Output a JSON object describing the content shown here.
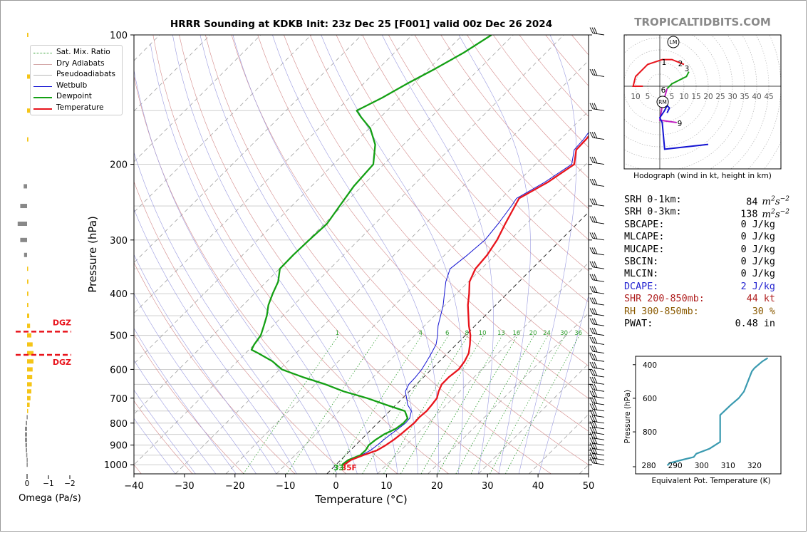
{
  "title": "HRRR Sounding at KDKB Init: 23z Dec 25 [F001] valid 00z Dec 26 2024",
  "brand": "TROPICALTIDBITS.COM",
  "colors": {
    "temperature": "#e8141c",
    "dewpoint": "#14a014",
    "wetbulb": "#1414d2",
    "dry_adiabat": "#d48a8a",
    "moist_adiabat": "#9a9ae0",
    "mixing_ratio": "#2e9e2e",
    "isotherm": "#999999",
    "dgz": "#e8141c",
    "omega_up": "#f5c518",
    "omega_down": "#888888",
    "theta_e": "#3a9ab0",
    "dcape": "#2424d0",
    "shr": "#b02020",
    "rh": "#8a5a00"
  },
  "legend": [
    {
      "label": "Sat. Mix. Ratio",
      "style": "dotted",
      "color": "#2e9e2e"
    },
    {
      "label": "Dry Adiabats",
      "style": "solid",
      "color": "#d4a8a8"
    },
    {
      "label": "Pseudoadiabats",
      "style": "solid",
      "color": "#b8b8b8"
    },
    {
      "label": "Wetbulb",
      "style": "solid",
      "color": "#1414d2"
    },
    {
      "label": "Dewpoint",
      "style": "thick",
      "color": "#14a014"
    },
    {
      "label": "Temperature",
      "style": "thick",
      "color": "#e8141c"
    }
  ],
  "chart_data": [
    {
      "type": "line",
      "name": "skew-t",
      "xlabel": "Temperature (°C)",
      "ylabel": "Pressure (hPa)",
      "xlim": [
        -40,
        50
      ],
      "ylim": [
        1050,
        100
      ],
      "x_ticks": [
        "−40",
        "−30",
        "−20",
        "−10",
        "0",
        "10",
        "20",
        "30",
        "40",
        "50"
      ],
      "y_ticks": [
        "100",
        "200",
        "300",
        "400",
        "500",
        "600",
        "700",
        "800",
        "900",
        "1000"
      ],
      "mixing_ratio_labels": [
        "1",
        "4",
        "6",
        "8",
        "10",
        "13",
        "16",
        "20",
        "24",
        "30",
        "36"
      ],
      "surface_temp_label": "35F",
      "surface_dew_label": "33",
      "series": [
        {
          "name": "Temperature",
          "points": [
            [
              1.6,
              1000
            ],
            [
              1.8,
              990
            ],
            [
              2.0,
              975
            ],
            [
              3.5,
              950
            ],
            [
              5.3,
              925
            ],
            [
              6.0,
              900
            ],
            [
              6.5,
              875
            ],
            [
              6.8,
              850
            ],
            [
              7.0,
              825
            ],
            [
              7.2,
              800
            ],
            [
              7.1,
              775
            ],
            [
              7.3,
              750
            ],
            [
              7.1,
              725
            ],
            [
              6.8,
              700
            ],
            [
              5.8,
              675
            ],
            [
              5.0,
              650
            ],
            [
              5.0,
              625
            ],
            [
              5.4,
              600
            ],
            [
              5.0,
              575
            ],
            [
              4.2,
              550
            ],
            [
              2.7,
              525
            ],
            [
              1.0,
              500
            ],
            [
              -1.2,
              475
            ],
            [
              -3.3,
              450
            ],
            [
              -5.5,
              425
            ],
            [
              -7.5,
              400
            ],
            [
              -9.8,
              375
            ],
            [
              -11.2,
              350
            ],
            [
              -11.6,
              325
            ],
            [
              -12.6,
              300
            ],
            [
              -14.2,
              275
            ],
            [
              -15.8,
              250
            ],
            [
              -16.5,
              240
            ],
            [
              -14.0,
              220
            ],
            [
              -12.3,
              200
            ],
            [
              -14.8,
              185
            ],
            [
              -14.9,
              175
            ],
            [
              -15.5,
              160
            ],
            [
              -16.8,
              150
            ],
            [
              -17.6,
              140
            ],
            [
              -19.2,
              130
            ],
            [
              -22.3,
              120
            ],
            [
              -26.7,
              110
            ],
            [
              -30.3,
              100
            ]
          ]
        },
        {
          "name": "Dewpoint",
          "points": [
            [
              1.2,
              1000
            ],
            [
              1.3,
              990
            ],
            [
              1.5,
              975
            ],
            [
              2.9,
              950
            ],
            [
              3.0,
              925
            ],
            [
              2.6,
              900
            ],
            [
              2.9,
              875
            ],
            [
              3.5,
              850
            ],
            [
              4.7,
              825
            ],
            [
              5.1,
              800
            ],
            [
              5.0,
              780
            ],
            [
              3.0,
              750
            ],
            [
              -2.0,
              725
            ],
            [
              -7.0,
              700
            ],
            [
              -13.0,
              675
            ],
            [
              -18.0,
              650
            ],
            [
              -24.0,
              625
            ],
            [
              -29.6,
              600
            ],
            [
              -33.0,
              575
            ],
            [
              -37.5,
              550
            ],
            [
              -39.5,
              540
            ],
            [
              -40.0,
              525
            ],
            [
              -40.5,
              500
            ],
            [
              -41.8,
              475
            ],
            [
              -43.2,
              450
            ],
            [
              -45.0,
              425
            ],
            [
              -46.4,
              400
            ],
            [
              -47.7,
              375
            ],
            [
              -49.9,
              350
            ],
            [
              -50.0,
              325
            ],
            [
              -49.8,
              300
            ],
            [
              -49.5,
              275
            ],
            [
              -50.5,
              250
            ],
            [
              -51.6,
              225
            ],
            [
              -52.1,
              200
            ],
            [
              -55.6,
              180
            ],
            [
              -59.8,
              165
            ],
            [
              -64.0,
              155
            ],
            [
              -66.0,
              150
            ],
            [
              -63.5,
              140
            ],
            [
              -61.4,
              130
            ],
            [
              -58.8,
              120
            ],
            [
              -56.3,
              110
            ],
            [
              -54.3,
              100
            ]
          ]
        },
        {
          "name": "Wetbulb",
          "points": [
            [
              1.4,
              1000
            ],
            [
              1.5,
              990
            ],
            [
              1.6,
              975
            ],
            [
              3.1,
              950
            ],
            [
              4.0,
              925
            ],
            [
              4.3,
              900
            ],
            [
              4.5,
              875
            ],
            [
              4.8,
              850
            ],
            [
              5.2,
              825
            ],
            [
              5.5,
              800
            ],
            [
              5.4,
              780
            ],
            [
              4.3,
              750
            ],
            [
              2.3,
              725
            ],
            [
              0.8,
              700
            ],
            [
              -0.8,
              675
            ],
            [
              -1.5,
              650
            ],
            [
              -1.6,
              625
            ],
            [
              -1.9,
              600
            ],
            [
              -2.5,
              575
            ],
            [
              -3.2,
              550
            ],
            [
              -4.0,
              525
            ],
            [
              -5.5,
              500
            ],
            [
              -7.3,
              475
            ],
            [
              -8.8,
              450
            ],
            [
              -10.4,
              425
            ],
            [
              -12.4,
              400
            ],
            [
              -14.5,
              375
            ],
            [
              -16.2,
              350
            ],
            [
              -15.5,
              325
            ],
            [
              -15.0,
              300
            ],
            [
              -15.6,
              275
            ],
            [
              -16.5,
              250
            ],
            [
              -17.0,
              240
            ],
            [
              -14.6,
              220
            ],
            [
              -12.8,
              200
            ],
            [
              -15.2,
              185
            ],
            [
              -15.4,
              175
            ],
            [
              -16.3,
              160
            ],
            [
              -17.5,
              150
            ],
            [
              -18.4,
              140
            ],
            [
              -20.0,
              130
            ],
            [
              -23.1,
              120
            ],
            [
              -27.3,
              110
            ],
            [
              -30.8,
              100
            ]
          ]
        }
      ]
    },
    {
      "type": "line",
      "name": "hodograph",
      "caption": "Hodograph (wind in kt, height in km)",
      "tick_labels": [
        "10",
        "5",
        "5",
        "10",
        "15",
        "20",
        "25",
        "30",
        "35",
        "40",
        "45"
      ],
      "storm_motion_labels": [
        "LM",
        "RM"
      ],
      "height_labels": [
        "1",
        "2",
        "3",
        "6",
        "9"
      ],
      "series": [
        {
          "name": "0-1 km",
          "color": "#e8141c",
          "points": [
            [
              -7,
              0
            ],
            [
              -11,
              0
            ],
            [
              -10,
              4
            ],
            [
              -5,
              9
            ],
            [
              1,
              11
            ],
            [
              5,
              11
            ],
            [
              10,
              9
            ]
          ]
        },
        {
          "name": "1-3 km",
          "color": "#14a014",
          "points": [
            [
              12,
              6
            ],
            [
              11,
              4
            ],
            [
              5,
              1
            ],
            [
              3,
              -1
            ]
          ]
        },
        {
          "name": "3-6 km",
          "color": "#c020c0",
          "points": [
            [
              3,
              -1
            ],
            [
              1,
              -8
            ],
            [
              0,
              -14
            ],
            [
              7,
              -15
            ]
          ]
        },
        {
          "name": "6-9 km",
          "color": "#1414d2",
          "points": [
            [
              3,
              -11
            ],
            [
              4,
              -9
            ],
            [
              3,
              -8
            ],
            [
              2,
              -10
            ],
            [
              0,
              -13
            ],
            [
              1,
              -15
            ],
            [
              2,
              -26
            ],
            [
              20,
              -24
            ]
          ]
        }
      ]
    },
    {
      "type": "line",
      "name": "theta-e",
      "xlabel": "Equivalent Pot. Temperature (K)",
      "ylabel": "Pressure (hPa)",
      "xlim": [
        275,
        330
      ],
      "ylim": [
        1050,
        350
      ],
      "x_ticks": [
        "280",
        "290",
        "300",
        "310",
        "320"
      ],
      "y_ticks": [
        "400",
        "600",
        "800"
      ],
      "series": [
        {
          "name": "theta-e",
          "points": [
            [
              287,
              1000
            ],
            [
              288,
              985
            ],
            [
              293,
              965
            ],
            [
              297,
              950
            ],
            [
              298,
              930
            ],
            [
              303,
              900
            ],
            [
              307,
              860
            ],
            [
              307,
              790
            ],
            [
              307,
              740
            ],
            [
              307,
              700
            ],
            [
              311,
              640
            ],
            [
              314,
              600
            ],
            [
              316,
              560
            ],
            [
              317,
              520
            ],
            [
              318,
              480
            ],
            [
              319,
              440
            ],
            [
              320,
              420
            ],
            [
              323,
              380
            ],
            [
              325,
              360
            ]
          ]
        }
      ]
    },
    {
      "type": "bar",
      "name": "omega",
      "xlabel": "Omega (Pa/s)",
      "x_ticks": [
        "0",
        "−1",
        "−2"
      ],
      "dgz_labels": [
        "DGZ",
        "DGZ"
      ],
      "dgz_pressures": [
        490,
        555
      ],
      "levels": [
        100,
        125,
        150,
        175,
        225,
        250,
        275,
        300,
        325,
        350,
        375,
        400,
        425,
        450,
        475,
        500,
        525,
        550,
        575,
        600,
        625,
        650,
        675,
        700,
        725,
        750,
        775,
        800,
        825,
        850,
        875,
        900,
        925,
        950,
        975,
        1000
      ],
      "values": [
        0.03,
        0.07,
        0.08,
        0.03,
        -0.08,
        -0.16,
        -0.22,
        -0.16,
        -0.07,
        0.02,
        0.03,
        0.03,
        0.03,
        0.05,
        0.07,
        0.1,
        0.13,
        0.15,
        0.15,
        0.13,
        0.12,
        0.11,
        0.1,
        0.08,
        0.06,
        0.02,
        -0.01,
        -0.03,
        -0.05,
        -0.05,
        -0.05,
        -0.04,
        -0.03,
        -0.02,
        -0.01,
        -0.01
      ]
    }
  ],
  "parameters": [
    {
      "label": "SRH 0-1km:",
      "value": "84",
      "unit": "m2s-2",
      "color": "#000000"
    },
    {
      "label": "SRH 0-3km:",
      "value": "138",
      "unit": "m2s-2",
      "color": "#000000"
    },
    {
      "label": "SBCAPE:",
      "value": "0 J/kg",
      "color": "#000000"
    },
    {
      "label": "MLCAPE:",
      "value": "0 J/kg",
      "color": "#000000"
    },
    {
      "label": "MUCAPE:",
      "value": "0 J/kg",
      "color": "#000000"
    },
    {
      "label": "SBCIN:",
      "value": "0 J/kg",
      "color": "#000000"
    },
    {
      "label": "MLCIN:",
      "value": "0 J/kg",
      "color": "#000000"
    },
    {
      "label": "DCAPE:",
      "value": "2 J/kg",
      "color": "#2424d0"
    },
    {
      "label": "SHR 200-850mb:",
      "value": "44 kt",
      "color": "#b02020"
    },
    {
      "label": "RH 300-850mb:",
      "value": "30 %",
      "color": "#8a5a00"
    },
    {
      "label": "PWAT:",
      "value": "0.48 in",
      "color": "#000000"
    }
  ]
}
